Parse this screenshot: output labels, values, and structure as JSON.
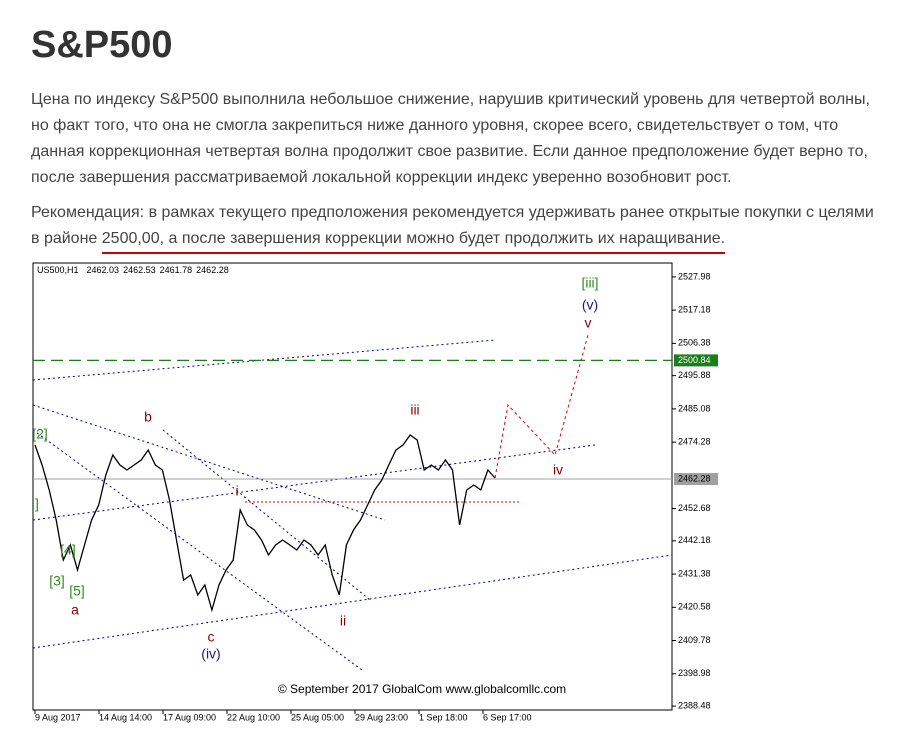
{
  "header": {
    "title": "S&P500"
  },
  "paragraphs": [
    "Цена по индексу S&P500 выполнила небольшое снижение, нарушив критический уровень для четвертой волны, но факт того, что она не смогла закрепиться ниже данного уровня, скорее всего, свидетельствует о том, что данная коррекционная четвертая волна продолжит свое развитие. Если данное предположение будет верно то, после завершения рассматриваемой локальной коррекции индекс уверенно возобновит рост."
  ],
  "recommendation": {
    "text": "Рекомендация:  в рамках текущего предположения рекомендуется удерживать ранее открытые покупки с целями в районе ",
    "underlined": "2500,00, а после завершения коррекции можно будет продолжить их наращивание."
  },
  "chart_data": {
    "type": "line",
    "symbol": "US500,H1",
    "ohlc": [
      2462.03,
      2462.53,
      2461.78,
      2462.28
    ],
    "xlabels": [
      "9 Aug 2017",
      "14 Aug 14:00",
      "17 Aug 09:00",
      "22 Aug 10:00",
      "25 Aug 05:00",
      "29 Aug 23:00",
      "1 Sep 18:00",
      "6 Sep 17:00"
    ],
    "values": [
      2473.35,
      2466.84,
      2458.71,
      2448.96,
      2435.95,
      2440.83,
      2432.7,
      2440.83,
      2448.96,
      2453.83,
      2463.59,
      2470.09,
      2466.84,
      2465.22,
      2466.84,
      2468.47,
      2471.72,
      2466.84,
      2465.22,
      2455.46,
      2442.45,
      2429.44,
      2431.07,
      2424.57,
      2427.82,
      2419.69,
      2427.82,
      2432.7,
      2435.95,
      2452.21,
      2447.33,
      2445.7,
      2442.45,
      2437.57,
      2440.83,
      2442.45,
      2440.83,
      2439.2,
      2442.45,
      2440.83,
      2437.57,
      2440.83,
      2431.07,
      2424.57,
      2440.83,
      2445.7,
      2448.96,
      2453.83,
      2458.71,
      2461.96,
      2466.84,
      2471.72,
      2473.35,
      2476.6,
      2474.97,
      2465.22,
      2466.84,
      2465.22,
      2468.47,
      2465.22,
      2447.33,
      2458.71,
      2460.34,
      2458.71,
      2465.22,
      2462.61
    ],
    "color": "#000000",
    "ylim": [
      2387.2,
      2532.5
    ],
    "yticks": [
      2527.98,
      2517.18,
      2506.38,
      2495.88,
      2485.08,
      2474.28,
      2452.68,
      2442.18,
      2431.38,
      2420.58,
      2409.78,
      2398.98,
      2388.48
    ],
    "levels": [
      {
        "value": 2500.84,
        "color": "#1a7f1a"
      },
      {
        "value": 2462.28,
        "color": "#a0a0a0"
      }
    ],
    "annotations": [
      {
        "text": "[2]",
        "color": "#2e8b22"
      },
      {
        "text": "]",
        "color": "#2e8b22"
      },
      {
        "text": "[4]",
        "color": "#2e8b22"
      },
      {
        "text": "[3]",
        "color": "#2e8b22"
      },
      {
        "text": "[5]",
        "color": "#2e8b22"
      },
      {
        "text": "a",
        "color": "#8b0000"
      },
      {
        "text": "b",
        "color": "#8b0000"
      },
      {
        "text": "c",
        "color": "#8b0000"
      },
      {
        "text": "(iv)",
        "color": "#1a1a8b"
      },
      {
        "text": "i",
        "color": "#8b0000"
      },
      {
        "text": "ii",
        "color": "#8b0000"
      },
      {
        "text": "iii",
        "color": "#8b0000"
      },
      {
        "text": "iv",
        "color": "#8b0000"
      },
      {
        "text": "v",
        "color": "#8b0000"
      },
      {
        "text": "(v)",
        "color": "#1a1a8b"
      },
      {
        "text": "[iii]",
        "color": "#2e8b22"
      }
    ],
    "copyright": "© September 2017 GlobalCom www.globalcomllc.com"
  }
}
